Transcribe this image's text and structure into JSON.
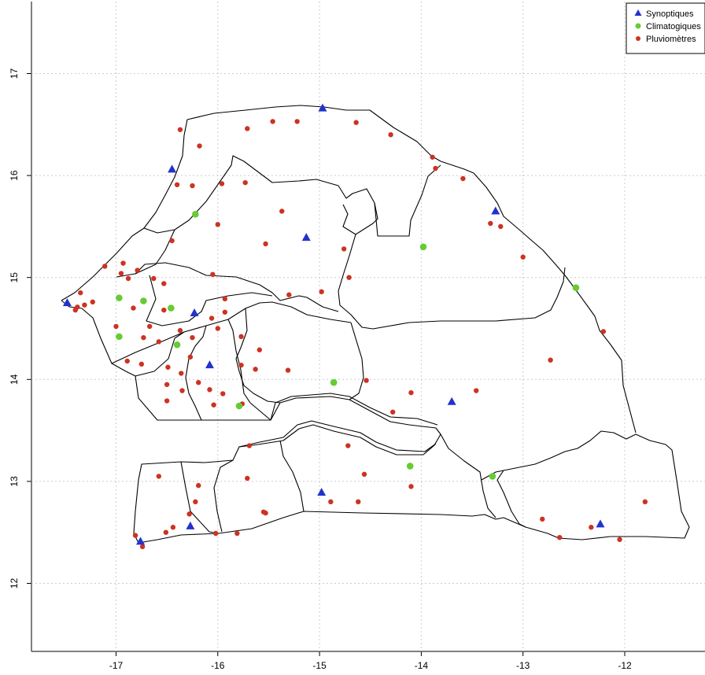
{
  "map": {
    "x_ticks": [
      -17,
      -16,
      -15,
      -14,
      -13,
      -12
    ],
    "x_tick_labels": [
      "-17",
      "-16",
      "-15",
      "-14",
      "-13",
      "-12"
    ],
    "y_ticks": [
      12,
      13,
      14,
      15,
      16,
      17
    ],
    "y_tick_labels": [
      "12",
      "13",
      "14",
      "15",
      "16",
      "17"
    ],
    "xlim": [
      -17.8,
      -11.2
    ],
    "ylim": [
      11.35,
      17.55
    ],
    "grid": true,
    "legend_position": "top-right"
  },
  "legend": {
    "items": [
      {
        "label": "Synoptiques",
        "marker": "triangle",
        "color": "#2233cc"
      },
      {
        "label": "Climatogiques",
        "marker": "circle",
        "color": "#66cc33"
      },
      {
        "label": "Pluviomètres",
        "marker": "circle",
        "color": "#cc3322"
      }
    ]
  },
  "colors": {
    "synoptiques": "#2233cc",
    "climatogiques": "#66cc33",
    "pluviometres": "#cc3322",
    "border": "#000000",
    "grid": "#cccccc"
  },
  "stations": {
    "synoptiques": [
      [
        -17.48,
        14.75
      ],
      [
        -16.45,
        16.06
      ],
      [
        -14.97,
        16.66
      ],
      [
        -15.13,
        15.39
      ],
      [
        -13.27,
        15.65
      ],
      [
        -16.23,
        14.65
      ],
      [
        -16.08,
        14.14
      ],
      [
        -13.7,
        13.78
      ],
      [
        -14.98,
        12.89
      ],
      [
        -16.27,
        12.56
      ],
      [
        -16.76,
        12.41
      ],
      [
        -12.24,
        12.58
      ]
    ],
    "climatogiques": [
      [
        -16.22,
        15.62
      ],
      [
        -16.97,
        14.8
      ],
      [
        -16.73,
        14.77
      ],
      [
        -16.46,
        14.7
      ],
      [
        -16.4,
        14.34
      ],
      [
        -16.97,
        14.42
      ],
      [
        -15.79,
        13.74
      ],
      [
        -14.86,
        13.97
      ],
      [
        -13.98,
        15.3
      ],
      [
        -12.48,
        14.9
      ],
      [
        -14.11,
        13.15
      ],
      [
        -13.3,
        13.05
      ]
    ],
    "pluviometres": [
      [
        -16.37,
        16.45
      ],
      [
        -16.18,
        16.29
      ],
      [
        -15.71,
        16.46
      ],
      [
        -15.46,
        16.53
      ],
      [
        -15.22,
        16.53
      ],
      [
        -14.64,
        16.52
      ],
      [
        -14.3,
        16.4
      ],
      [
        -13.89,
        16.18
      ],
      [
        -13.86,
        16.07
      ],
      [
        -13.59,
        15.97
      ],
      [
        -16.4,
        15.91
      ],
      [
        -16.25,
        15.9
      ],
      [
        -15.96,
        15.92
      ],
      [
        -15.73,
        15.93
      ],
      [
        -15.37,
        15.65
      ],
      [
        -16.0,
        15.52
      ],
      [
        -13.32,
        15.53
      ],
      [
        -13.22,
        15.5
      ],
      [
        -15.53,
        15.33
      ],
      [
        -16.45,
        15.36
      ],
      [
        -14.76,
        15.28
      ],
      [
        -13.0,
        15.2
      ],
      [
        -17.11,
        15.11
      ],
      [
        -16.93,
        15.14
      ],
      [
        -16.79,
        15.07
      ],
      [
        -16.95,
        15.04
      ],
      [
        -16.88,
        14.99
      ],
      [
        -16.63,
        14.99
      ],
      [
        -16.53,
        14.94
      ],
      [
        -16.05,
        15.03
      ],
      [
        -15.3,
        14.83
      ],
      [
        -14.98,
        14.86
      ],
      [
        -14.71,
        15.0
      ],
      [
        -17.23,
        14.76
      ],
      [
        -17.35,
        14.85
      ],
      [
        -17.31,
        14.73
      ],
      [
        -17.4,
        14.68
      ],
      [
        -17.38,
        14.71
      ],
      [
        -16.83,
        14.7
      ],
      [
        -16.53,
        14.68
      ],
      [
        -15.93,
        14.79
      ],
      [
        -15.93,
        14.66
      ],
      [
        -16.06,
        14.6
      ],
      [
        -17.0,
        14.52
      ],
      [
        -16.67,
        14.52
      ],
      [
        -16.37,
        14.48
      ],
      [
        -16.0,
        14.5
      ],
      [
        -16.73,
        14.41
      ],
      [
        -16.58,
        14.37
      ],
      [
        -16.25,
        14.41
      ],
      [
        -15.77,
        14.42
      ],
      [
        -15.59,
        14.29
      ],
      [
        -16.89,
        14.18
      ],
      [
        -16.75,
        14.15
      ],
      [
        -16.49,
        14.12
      ],
      [
        -16.27,
        14.22
      ],
      [
        -15.77,
        14.14
      ],
      [
        -15.63,
        14.1
      ],
      [
        -15.31,
        14.09
      ],
      [
        -14.54,
        13.99
      ],
      [
        -14.1,
        13.87
      ],
      [
        -13.46,
        13.89
      ],
      [
        -12.73,
        14.19
      ],
      [
        -12.21,
        14.47
      ],
      [
        -16.36,
        14.06
      ],
      [
        -16.5,
        13.95
      ],
      [
        -16.35,
        13.89
      ],
      [
        -16.19,
        13.97
      ],
      [
        -16.08,
        13.9
      ],
      [
        -15.95,
        13.86
      ],
      [
        -16.5,
        13.79
      ],
      [
        -16.04,
        13.75
      ],
      [
        -15.76,
        13.76
      ],
      [
        -14.28,
        13.68
      ],
      [
        -15.69,
        13.35
      ],
      [
        -14.72,
        13.35
      ],
      [
        -15.71,
        13.03
      ],
      [
        -14.56,
        13.07
      ],
      [
        -14.1,
        12.95
      ],
      [
        -14.89,
        12.8
      ],
      [
        -14.62,
        12.8
      ],
      [
        -16.58,
        13.05
      ],
      [
        -16.19,
        12.96
      ],
      [
        -16.22,
        12.8
      ],
      [
        -16.28,
        12.68
      ],
      [
        -16.44,
        12.55
      ],
      [
        -16.51,
        12.5
      ],
      [
        -16.81,
        12.47
      ],
      [
        -16.74,
        12.36
      ],
      [
        -16.02,
        12.49
      ],
      [
        -15.81,
        12.49
      ],
      [
        -15.55,
        12.7
      ],
      [
        -15.53,
        12.69
      ],
      [
        -12.81,
        12.63
      ],
      [
        -12.64,
        12.45
      ],
      [
        -12.33,
        12.55
      ],
      [
        -12.05,
        12.43
      ],
      [
        -11.8,
        12.8
      ]
    ]
  }
}
